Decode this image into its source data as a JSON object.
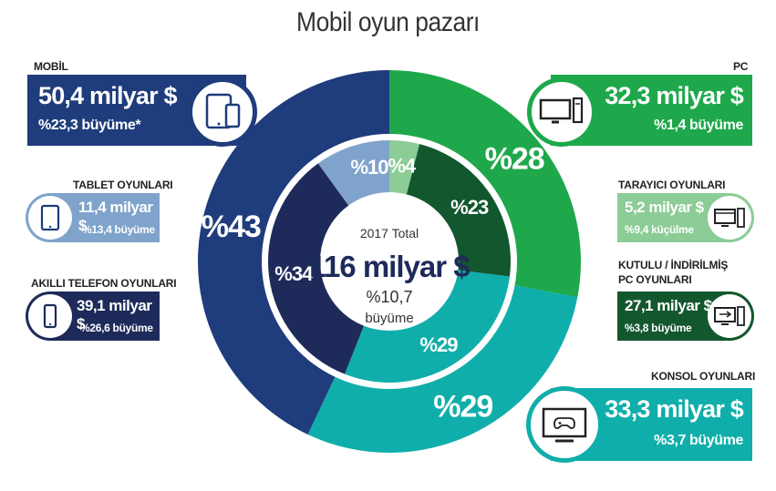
{
  "title": "Mobil oyun pazarı",
  "colors": {
    "mobil": "#1f3c7c",
    "mobil_dark": "#1d2a5a",
    "tablet": "#7fa3cb",
    "pc": "#1ea84b",
    "tarayici": "#8ccc96",
    "kutulu": "#13572e",
    "konsol": "#10aeaa"
  },
  "center": {
    "year_label": "2017 Total",
    "total": "116 milyar $",
    "growth_pct": "%10,7",
    "growth_label": "büyüme"
  },
  "callouts": {
    "mobil": {
      "caption": "MOBİL",
      "value": "50,4 milyar $",
      "growth": "%23,3 büyüme*",
      "icon": "tablet-phone-icon"
    },
    "tablet": {
      "caption": "TABLET OYUNLARI",
      "value": "11,4 milyar $",
      "growth": "%13,4 büyüme",
      "icon": "tablet-icon"
    },
    "telefon": {
      "caption": "AKILLI TELEFON OYUNLARI",
      "value": "39,1 milyar $",
      "growth": "%26,6 büyüme",
      "icon": "smartphone-icon"
    },
    "pc": {
      "caption": "PC",
      "value": "32,3 milyar $",
      "growth": "%1,4 büyüme",
      "icon": "desktop-computer-icon"
    },
    "tarayici": {
      "caption": "TARAYICI OYUNLARI",
      "value": "5,2 milyar $",
      "growth": "%9,4 küçülme",
      "icon": "browser-computer-icon"
    },
    "kutulu": {
      "caption_line1": "KUTULU / İNDİRİLMİŞ",
      "caption_line2": "PC OYUNLARI",
      "value": "27,1 milyar $",
      "growth": "%3,8 büyüme",
      "icon": "download-computer-icon"
    },
    "konsol": {
      "caption": "KONSOL OYUNLARI",
      "value": "33,3 milyar $",
      "growth": "%3,7 büyüme",
      "icon": "console-tv-icon"
    }
  },
  "chart_data": {
    "type": "pie",
    "variant": "nested-donut",
    "title": "Mobil oyun pazarı",
    "start_angle_deg": 0,
    "direction": "clockwise",
    "outer": [
      {
        "name": "PC",
        "value": 28,
        "label": "%28",
        "color": "#1ea84b"
      },
      {
        "name": "Konsol",
        "value": 29,
        "label": "%29",
        "color": "#10aeaa"
      },
      {
        "name": "Mobil",
        "value": 43,
        "label": "%43",
        "color": "#1f3c7c"
      }
    ],
    "inner": [
      {
        "name": "Tarayıcı",
        "value": 4,
        "label": "%4",
        "color": "#8ccc96"
      },
      {
        "name": "Kutulu / İndirilmiş PC",
        "value": 23,
        "label": "%23",
        "color": "#13572e"
      },
      {
        "name": "Konsol",
        "value": 29,
        "label": "%29",
        "color": "#10aeaa"
      },
      {
        "name": "Akıllı telefon",
        "value": 34,
        "label": "%34",
        "color": "#1d2a5a"
      },
      {
        "name": "Tablet",
        "value": 10,
        "label": "%10",
        "color": "#7fa3cb"
      }
    ]
  }
}
